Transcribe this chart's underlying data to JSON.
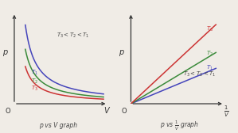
{
  "bg_color": "#f0ece6",
  "line_colors": {
    "T1": "#4444bb",
    "T2": "#3a8a3a",
    "T3": "#cc3333"
  },
  "annotation_color": "#444444",
  "label_pv": "p vs V graph",
  "label_p1v": "p vs $\\frac{1}{V}$ graph",
  "inequality_left": "$T_3 < T_2 < T_1$",
  "inequality_right": "$T_3 < T_2 < T_1$",
  "T_labels": [
    "$T_1$",
    "$T_2$",
    "$T_3$"
  ],
  "x_label_left": "V",
  "x_label_right": "$\\frac{1}{V}$",
  "y_label": "p",
  "k_T1": 0.55,
  "k_T2": 0.38,
  "k_T3": 0.26,
  "s_T1": 0.38,
  "s_T2": 0.55,
  "s_T3": 0.85
}
